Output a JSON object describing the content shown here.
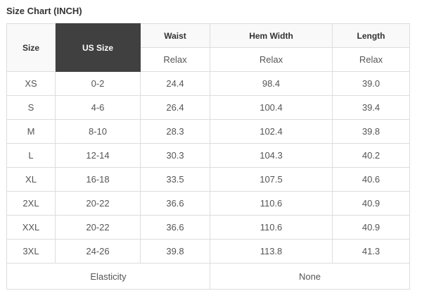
{
  "title": "Size Chart (INCH)",
  "headers": {
    "size": "Size",
    "us_size": "US Size",
    "waist": "Waist",
    "hem_width": "Hem Width",
    "length": "Length",
    "waist_sub": "Relax",
    "hem_sub": "Relax",
    "length_sub": "Relax"
  },
  "rows": [
    [
      "XS",
      "0-2",
      "24.4",
      "98.4",
      "39.0"
    ],
    [
      "S",
      "4-6",
      "26.4",
      "100.4",
      "39.4"
    ],
    [
      "M",
      "8-10",
      "28.3",
      "102.4",
      "39.8"
    ],
    [
      "L",
      "12-14",
      "30.3",
      "104.3",
      "40.2"
    ],
    [
      "XL",
      "16-18",
      "33.5",
      "107.5",
      "40.6"
    ],
    [
      "2XL",
      "20-22",
      "36.6",
      "110.6",
      "40.9"
    ],
    [
      "XXL",
      "20-22",
      "36.6",
      "110.6",
      "40.9"
    ],
    [
      "3XL",
      "24-26",
      "39.8",
      "113.8",
      "41.3"
    ]
  ],
  "footer": {
    "label": "Elasticity",
    "value": "None"
  },
  "colors": {
    "header_dark": "#404040",
    "header_light": "#f9f9f9",
    "border": "#dddddd"
  }
}
